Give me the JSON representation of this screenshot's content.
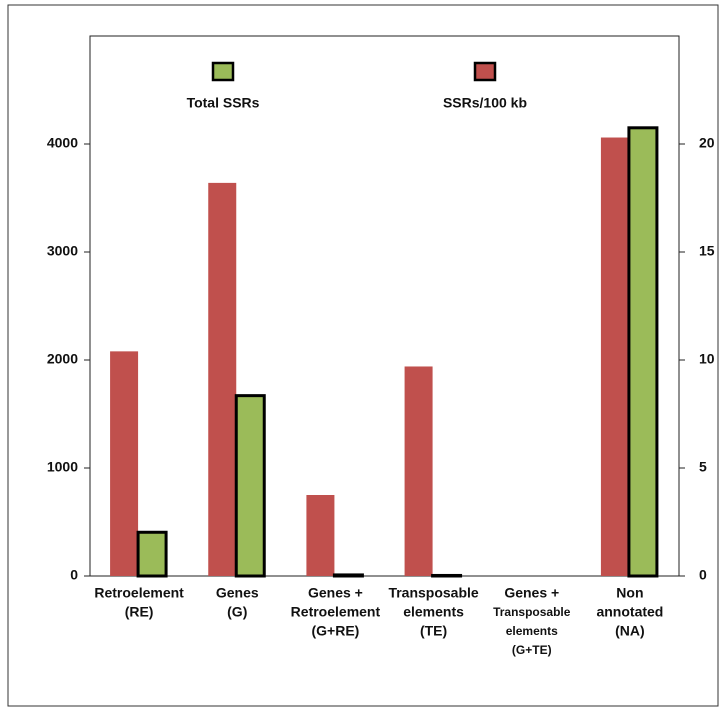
{
  "chart_data": {
    "type": "bar",
    "categories": [
      [
        "Retroelement",
        "(RE)"
      ],
      [
        "Genes",
        "(G)"
      ],
      [
        "Genes +",
        "Retroelement",
        "(G+RE)"
      ],
      [
        "Transposable",
        "elements",
        "(TE)"
      ],
      [
        "Genes +",
        "Transposable",
        "elements",
        "(G+TE)"
      ],
      [
        "Non",
        "annotated",
        "(NA)"
      ]
    ],
    "series": [
      {
        "name": "SSRs/100 kb",
        "color": "#c0504d",
        "axis": "y2",
        "values": [
          10.4,
          18.2,
          3.75,
          9.7,
          0,
          20.3
        ]
      },
      {
        "name": "Total SSRs",
        "color": "#9bbb59",
        "values": [
          405,
          1670,
          10,
          5,
          0,
          4150
        ]
      }
    ],
    "ylim": [
      0,
      5000
    ],
    "yticks": [
      0,
      1000,
      2000,
      3000,
      4000
    ],
    "y2lim": [
      0,
      25
    ],
    "y2ticks": [
      0,
      5,
      10,
      15,
      20
    ]
  }
}
